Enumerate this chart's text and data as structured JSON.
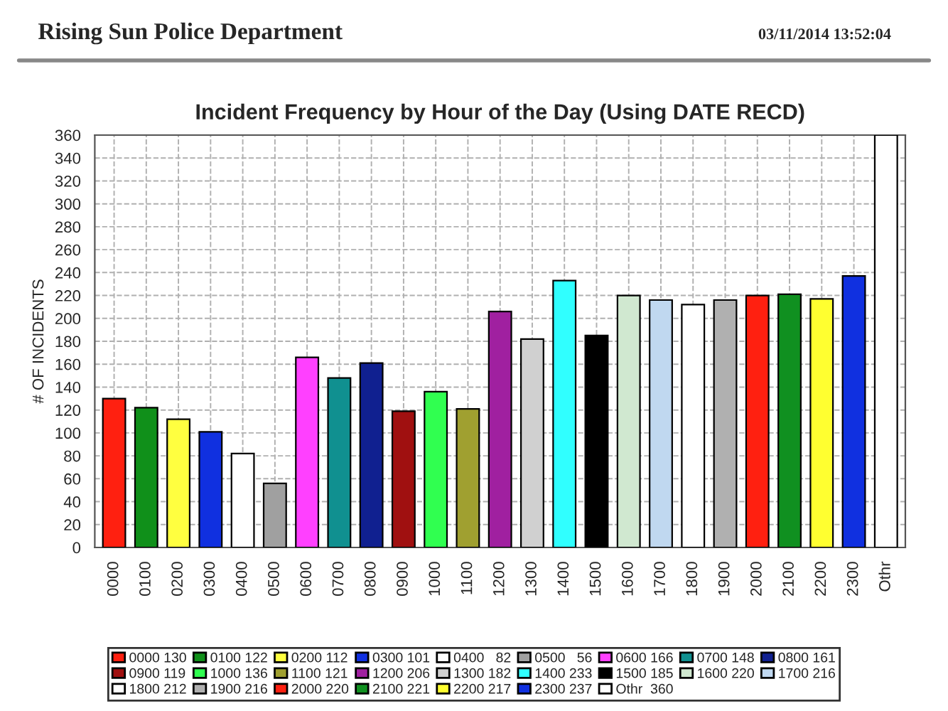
{
  "chart_data": {
    "type": "bar",
    "title": "Incident Frequency by Hour of the Day (Using DATE RECD)",
    "ylabel": "# OF INCIDENTS",
    "annotations": [
      "Rising Sun Police Department",
      "03/11/2014 13:52:04"
    ],
    "categories": [
      "0000",
      "0100",
      "0200",
      "0300",
      "0400",
      "0500",
      "0600",
      "0700",
      "0800",
      "0900",
      "1000",
      "1100",
      "1200",
      "1300",
      "1400",
      "1500",
      "1600",
      "1700",
      "1800",
      "1900",
      "2000",
      "2100",
      "2200",
      "2300",
      "Othr"
    ],
    "series": [
      {
        "name": "0000 130",
        "color": "#ff2010",
        "values": [
          130,
          null,
          null,
          null,
          null,
          null,
          null,
          null,
          null,
          null,
          null,
          null,
          null,
          null,
          null,
          null,
          null,
          null,
          null,
          null,
          null,
          null,
          null,
          null,
          null
        ]
      },
      {
        "name": "0100 122",
        "color": "#10901a",
        "values": [
          null,
          122,
          null,
          null,
          null,
          null,
          null,
          null,
          null,
          null,
          null,
          null,
          null,
          null,
          null,
          null,
          null,
          null,
          null,
          null,
          null,
          null,
          null,
          null,
          null
        ]
      },
      {
        "name": "0200 112",
        "color": "#ffff40",
        "values": [
          null,
          null,
          112,
          null,
          null,
          null,
          null,
          null,
          null,
          null,
          null,
          null,
          null,
          null,
          null,
          null,
          null,
          null,
          null,
          null,
          null,
          null,
          null,
          null,
          null
        ]
      },
      {
        "name": "0300 101",
        "color": "#1030e0",
        "values": [
          null,
          null,
          null,
          101,
          null,
          null,
          null,
          null,
          null,
          null,
          null,
          null,
          null,
          null,
          null,
          null,
          null,
          null,
          null,
          null,
          null,
          null,
          null,
          null,
          null
        ]
      },
      {
        "name": "0400   82",
        "color": "#ffffff",
        "values": [
          null,
          null,
          null,
          null,
          82,
          null,
          null,
          null,
          null,
          null,
          null,
          null,
          null,
          null,
          null,
          null,
          null,
          null,
          null,
          null,
          null,
          null,
          null,
          null,
          null
        ]
      },
      {
        "name": "0500   56",
        "color": "#a0a0a0",
        "values": [
          null,
          null,
          null,
          null,
          null,
          56,
          null,
          null,
          null,
          null,
          null,
          null,
          null,
          null,
          null,
          null,
          null,
          null,
          null,
          null,
          null,
          null,
          null,
          null,
          null
        ]
      },
      {
        "name": "0600 166",
        "color": "#ff40ff",
        "values": [
          null,
          null,
          null,
          null,
          null,
          null,
          166,
          null,
          null,
          null,
          null,
          null,
          null,
          null,
          null,
          null,
          null,
          null,
          null,
          null,
          null,
          null,
          null,
          null,
          null
        ]
      },
      {
        "name": "0700 148",
        "color": "#109090",
        "values": [
          null,
          null,
          null,
          null,
          null,
          null,
          null,
          148,
          null,
          null,
          null,
          null,
          null,
          null,
          null,
          null,
          null,
          null,
          null,
          null,
          null,
          null,
          null,
          null,
          null
        ]
      },
      {
        "name": "0800 161",
        "color": "#102090",
        "values": [
          null,
          null,
          null,
          null,
          null,
          null,
          null,
          null,
          161,
          null,
          null,
          null,
          null,
          null,
          null,
          null,
          null,
          null,
          null,
          null,
          null,
          null,
          null,
          null,
          null
        ]
      },
      {
        "name": "0900 119",
        "color": "#a01010",
        "values": [
          null,
          null,
          null,
          null,
          null,
          null,
          null,
          null,
          null,
          119,
          null,
          null,
          null,
          null,
          null,
          null,
          null,
          null,
          null,
          null,
          null,
          null,
          null,
          null,
          null
        ]
      },
      {
        "name": "1000 136",
        "color": "#30ff50",
        "values": [
          null,
          null,
          null,
          null,
          null,
          null,
          null,
          null,
          null,
          null,
          136,
          null,
          null,
          null,
          null,
          null,
          null,
          null,
          null,
          null,
          null,
          null,
          null,
          null,
          null
        ]
      },
      {
        "name": "1100 121",
        "color": "#a0a030",
        "values": [
          null,
          null,
          null,
          null,
          null,
          null,
          null,
          null,
          null,
          null,
          null,
          121,
          null,
          null,
          null,
          null,
          null,
          null,
          null,
          null,
          null,
          null,
          null,
          null,
          null
        ]
      },
      {
        "name": "1200 206",
        "color": "#a020a0",
        "values": [
          null,
          null,
          null,
          null,
          null,
          null,
          null,
          null,
          null,
          null,
          null,
          null,
          206,
          null,
          null,
          null,
          null,
          null,
          null,
          null,
          null,
          null,
          null,
          null,
          null
        ]
      },
      {
        "name": "1300 182",
        "color": "#d0d0d0",
        "values": [
          null,
          null,
          null,
          null,
          null,
          null,
          null,
          null,
          null,
          null,
          null,
          null,
          null,
          182,
          null,
          null,
          null,
          null,
          null,
          null,
          null,
          null,
          null,
          null,
          null
        ]
      },
      {
        "name": "1400 233",
        "color": "#30ffff",
        "values": [
          null,
          null,
          null,
          null,
          null,
          null,
          null,
          null,
          null,
          null,
          null,
          null,
          null,
          null,
          233,
          null,
          null,
          null,
          null,
          null,
          null,
          null,
          null,
          null,
          null
        ]
      },
      {
        "name": "1500 185",
        "color": "#000000",
        "values": [
          null,
          null,
          null,
          null,
          null,
          null,
          null,
          null,
          null,
          null,
          null,
          null,
          null,
          null,
          null,
          185,
          null,
          null,
          null,
          null,
          null,
          null,
          null,
          null,
          null
        ]
      },
      {
        "name": "1600 220",
        "color": "#d0e8d0",
        "values": [
          null,
          null,
          null,
          null,
          null,
          null,
          null,
          null,
          null,
          null,
          null,
          null,
          null,
          null,
          null,
          null,
          220,
          null,
          null,
          null,
          null,
          null,
          null,
          null,
          null
        ]
      },
      {
        "name": "1700 216",
        "color": "#c0d8f0",
        "values": [
          null,
          null,
          null,
          null,
          null,
          null,
          null,
          null,
          null,
          null,
          null,
          null,
          null,
          null,
          null,
          null,
          null,
          216,
          null,
          null,
          null,
          null,
          null,
          null,
          null
        ]
      },
      {
        "name": "1800 212",
        "color": "#ffffff",
        "values": [
          null,
          null,
          null,
          null,
          null,
          null,
          null,
          null,
          null,
          null,
          null,
          null,
          null,
          null,
          null,
          null,
          null,
          null,
          212,
          null,
          null,
          null,
          null,
          null,
          null
        ]
      },
      {
        "name": "1900 216",
        "color": "#b0b0b0",
        "values": [
          null,
          null,
          null,
          null,
          null,
          null,
          null,
          null,
          null,
          null,
          null,
          null,
          null,
          null,
          null,
          null,
          null,
          null,
          null,
          216,
          null,
          null,
          null,
          null,
          null
        ]
      },
      {
        "name": "2000 220",
        "color": "#ff2010",
        "values": [
          null,
          null,
          null,
          null,
          null,
          null,
          null,
          null,
          null,
          null,
          null,
          null,
          null,
          null,
          null,
          null,
          null,
          null,
          null,
          null,
          220,
          null,
          null,
          null,
          null
        ]
      },
      {
        "name": "2100 221",
        "color": "#109020",
        "values": [
          null,
          null,
          null,
          null,
          null,
          null,
          null,
          null,
          null,
          null,
          null,
          null,
          null,
          null,
          null,
          null,
          null,
          null,
          null,
          null,
          null,
          221,
          null,
          null,
          null
        ]
      },
      {
        "name": "2200 217",
        "color": "#ffff30",
        "values": [
          null,
          null,
          null,
          null,
          null,
          null,
          null,
          null,
          null,
          null,
          null,
          null,
          null,
          null,
          null,
          null,
          null,
          null,
          null,
          null,
          null,
          null,
          217,
          null,
          null
        ]
      },
      {
        "name": "2300 237",
        "color": "#1030e0",
        "values": [
          null,
          null,
          null,
          null,
          null,
          null,
          null,
          null,
          null,
          null,
          null,
          null,
          null,
          null,
          null,
          null,
          null,
          null,
          null,
          null,
          null,
          null,
          null,
          237,
          null
        ]
      },
      {
        "name": "Othr  360",
        "color": "#ffffff",
        "values": [
          null,
          null,
          null,
          null,
          null,
          null,
          null,
          null,
          null,
          null,
          null,
          null,
          null,
          null,
          null,
          null,
          null,
          null,
          null,
          null,
          null,
          null,
          null,
          null,
          360
        ]
      }
    ],
    "ylim": [
      0,
      360
    ],
    "yticks": [
      0,
      20,
      40,
      60,
      80,
      100,
      120,
      140,
      160,
      180,
      200,
      220,
      240,
      260,
      280,
      300,
      320,
      340,
      360
    ],
    "grid": true,
    "legend": "bottom"
  }
}
